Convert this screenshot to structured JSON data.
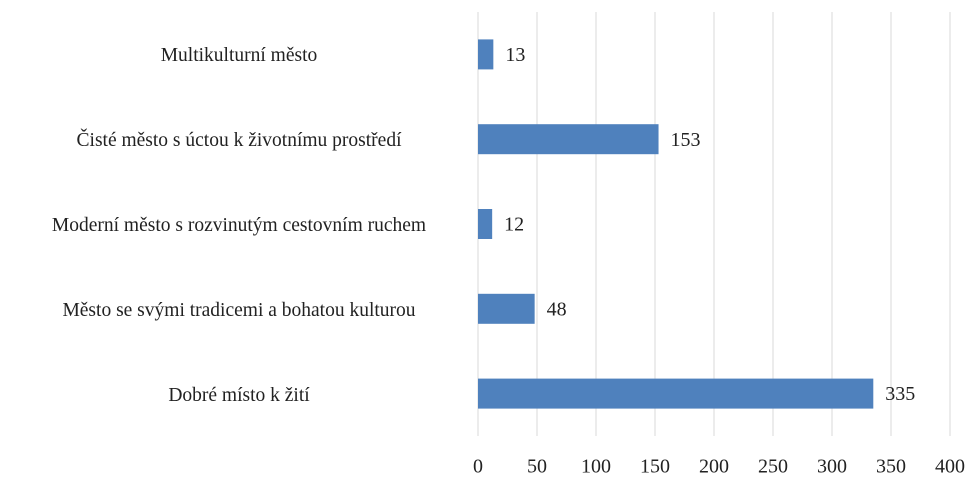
{
  "chart_data": {
    "type": "bar",
    "orientation": "horizontal",
    "categories": [
      "Multikulturní město",
      "Čisté město s úctou k životnímu prostředí",
      "Moderní město s rozvinutým cestovním ruchem",
      "Město se svými tradicemi a bohatou kulturou",
      "Dobré místo k žití"
    ],
    "values": [
      13,
      153,
      12,
      48,
      335
    ],
    "color": "#4f81bd",
    "xlim": [
      0,
      400
    ],
    "xticks": [
      0,
      50,
      100,
      150,
      200,
      250,
      300,
      350,
      400
    ],
    "grid": true
  }
}
